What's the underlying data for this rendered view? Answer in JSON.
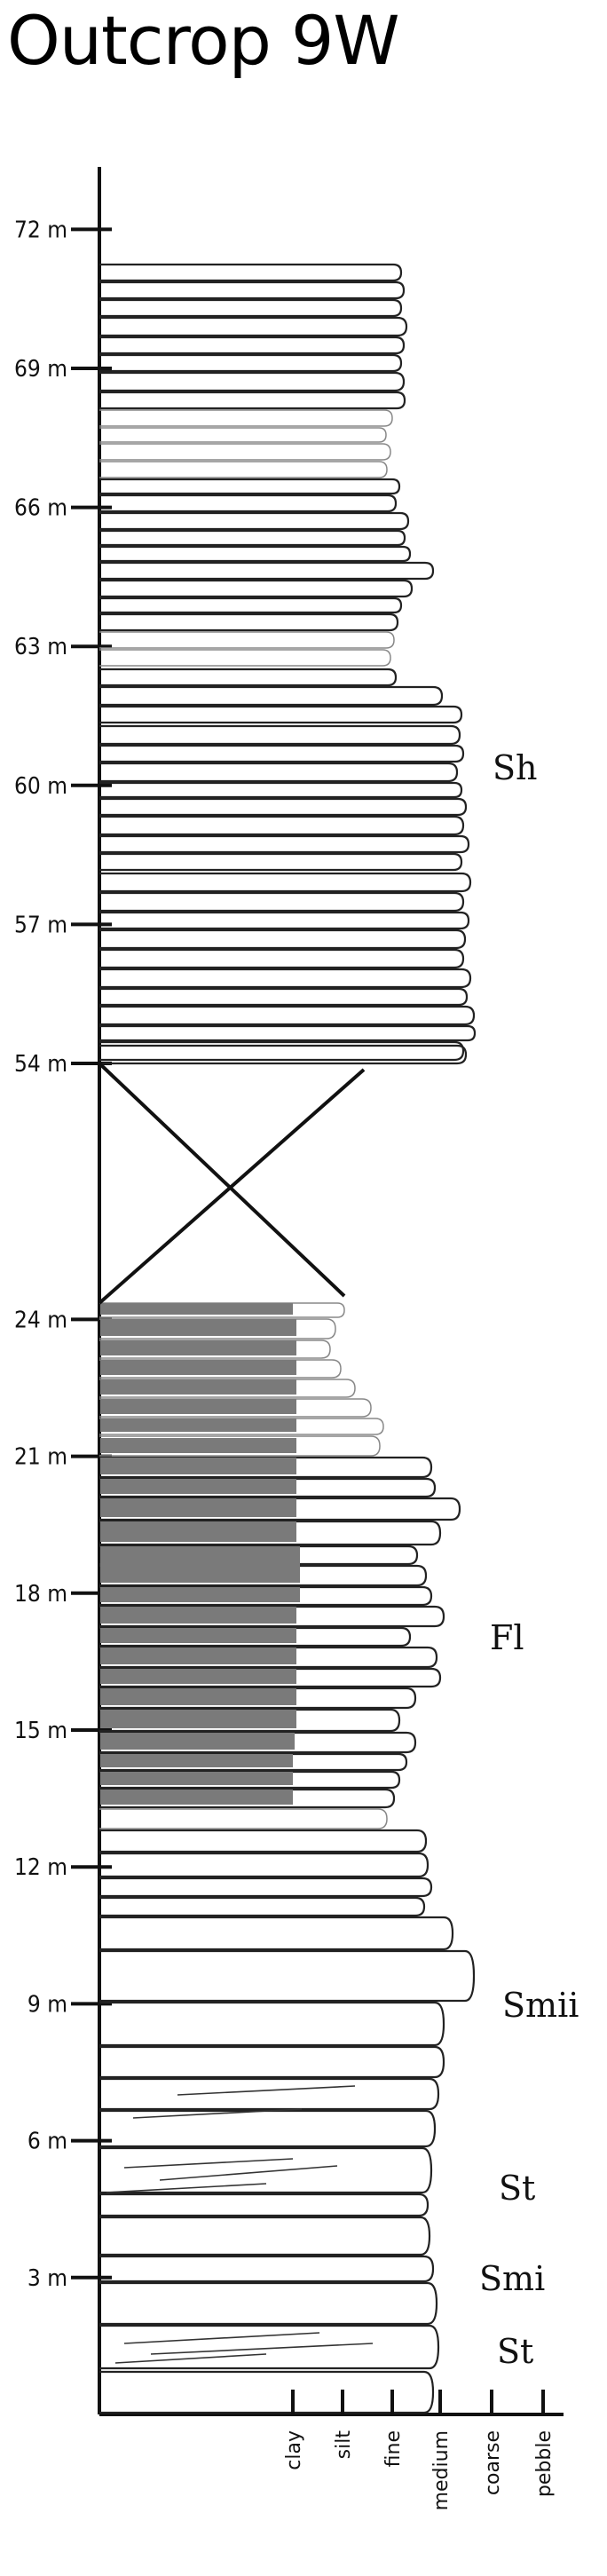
{
  "title": "Outcrop 9W",
  "depth_ticks": [
    {
      "value": 72,
      "label": "72 m"
    },
    {
      "value": 69,
      "label": "69 m"
    },
    {
      "value": 66,
      "label": "66 m"
    },
    {
      "value": 63,
      "label": "63 m"
    },
    {
      "value": 60,
      "label": "60 m"
    },
    {
      "value": 57,
      "label": "57 m"
    },
    {
      "value": 54,
      "label": "54 m"
    },
    {
      "value": 24,
      "label": "24 m"
    },
    {
      "value": 21,
      "label": "21 m"
    },
    {
      "value": 18,
      "label": "18 m"
    },
    {
      "value": 15,
      "label": "15 m"
    },
    {
      "value": 12,
      "label": "12 m"
    },
    {
      "value": 9,
      "label": "9 m"
    },
    {
      "value": 6,
      "label": "6 m"
    },
    {
      "value": 3,
      "label": "3 m"
    }
  ],
  "grain_sizes": [
    "clay",
    "silt",
    "fine",
    "medium",
    "coarse",
    "pebble"
  ],
  "facies": [
    {
      "code": "Sh",
      "top_m": 71,
      "base_m": 54
    },
    {
      "code": "Fl",
      "top_m": 24.7,
      "base_m": 12
    },
    {
      "code": "Smii",
      "top_m": 10.5,
      "base_m": 7
    },
    {
      "code": "St",
      "top_m": 6.5,
      "base_m": 4
    },
    {
      "code": "Smi",
      "top_m": 4,
      "base_m": 2
    },
    {
      "code": "St",
      "top_m": 2,
      "base_m": 1
    }
  ],
  "colors": {
    "mud_fill": "#7a7a7a",
    "ink": "#111111"
  }
}
